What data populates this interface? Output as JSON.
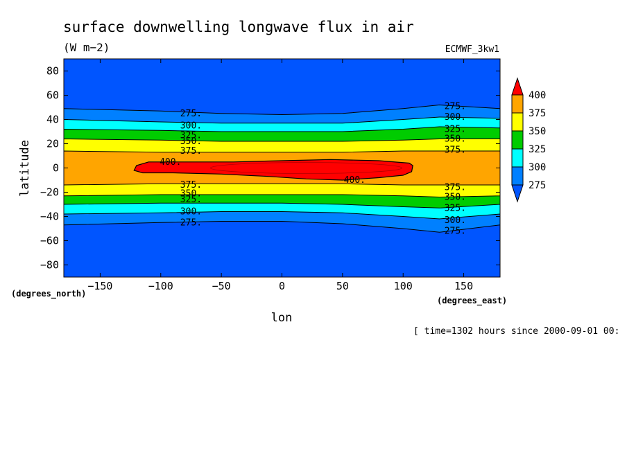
{
  "chart_data": {
    "type": "heatmap",
    "title": "surface downwelling longwave flux in air",
    "units": "(W m−2)",
    "dataset": "ECMWF_3kw1",
    "xlabel": "lon",
    "ylabel": "latitude",
    "x_unit_label": "(degrees_east)",
    "y_unit_label": "(degrees_north)",
    "time_label": "[ time=1302 hours since 2000-09-01 00:",
    "xlim": [
      -180,
      180
    ],
    "ylim": [
      -90,
      90
    ],
    "x_ticks": [
      -150,
      -100,
      -50,
      0,
      50,
      100,
      150
    ],
    "x_tick_labels": [
      "−150",
      "−100",
      "−50",
      "0",
      "50",
      "100",
      "150"
    ],
    "y_ticks": [
      80,
      60,
      40,
      20,
      0,
      -20,
      -40,
      -60,
      -80
    ],
    "y_tick_labels": [
      "80",
      "60",
      "40",
      "20",
      "0",
      "−20",
      "−40",
      "−60",
      "−80"
    ],
    "colorbar": {
      "levels": [
        400,
        375,
        350,
        325,
        300,
        275
      ],
      "labels": [
        "400",
        "375",
        "350",
        "325",
        "300",
        "275"
      ],
      "colors": [
        "#ff0000",
        "#ffa500",
        "#ffff00",
        "#00cc00",
        "#00ffff",
        "#0080ff"
      ],
      "under_color": "#0055ff"
    },
    "background_color": "#0055ff",
    "bands": [
      {
        "color": "#0080ff",
        "north": [
          [
            -180,
            49
          ],
          [
            -100,
            47
          ],
          [
            -50,
            45
          ],
          [
            0,
            44
          ],
          [
            50,
            45
          ],
          [
            100,
            49
          ],
          [
            130,
            52
          ],
          [
            180,
            49
          ]
        ],
        "south": [
          [
            -180,
            -47
          ],
          [
            -100,
            -45
          ],
          [
            -50,
            -44
          ],
          [
            0,
            -44
          ],
          [
            50,
            -46
          ],
          [
            100,
            -50
          ],
          [
            130,
            -53
          ],
          [
            180,
            -47
          ]
        ]
      },
      {
        "color": "#00ffff",
        "north": [
          [
            -180,
            40
          ],
          [
            -100,
            38
          ],
          [
            -50,
            37
          ],
          [
            0,
            37
          ],
          [
            50,
            37
          ],
          [
            100,
            40
          ],
          [
            130,
            42
          ],
          [
            180,
            41
          ]
        ],
        "south": [
          [
            -180,
            -38
          ],
          [
            -100,
            -37
          ],
          [
            -50,
            -36
          ],
          [
            0,
            -36
          ],
          [
            50,
            -37
          ],
          [
            100,
            -40
          ],
          [
            130,
            -42
          ],
          [
            180,
            -38
          ]
        ]
      },
      {
        "color": "#00cc00",
        "north": [
          [
            -180,
            32
          ],
          [
            -100,
            31
          ],
          [
            -50,
            30
          ],
          [
            0,
            30
          ],
          [
            50,
            30
          ],
          [
            100,
            32
          ],
          [
            130,
            34
          ],
          [
            180,
            33
          ]
        ],
        "south": [
          [
            -180,
            -30
          ],
          [
            -100,
            -29
          ],
          [
            -50,
            -29
          ],
          [
            0,
            -29
          ],
          [
            50,
            -30
          ],
          [
            100,
            -32
          ],
          [
            130,
            -33
          ],
          [
            180,
            -30
          ]
        ]
      },
      {
        "color": "#ffff00",
        "north": [
          [
            -180,
            24
          ],
          [
            -100,
            23
          ],
          [
            -50,
            22
          ],
          [
            0,
            22
          ],
          [
            50,
            22
          ],
          [
            100,
            23
          ],
          [
            130,
            24
          ],
          [
            180,
            24
          ]
        ],
        "south": [
          [
            -180,
            -23
          ],
          [
            -100,
            -22
          ],
          [
            -50,
            -22
          ],
          [
            0,
            -22
          ],
          [
            50,
            -22
          ],
          [
            100,
            -23
          ],
          [
            130,
            -24
          ],
          [
            180,
            -23
          ]
        ]
      },
      {
        "color": "#ffa500",
        "north": [
          [
            -180,
            14
          ],
          [
            -100,
            13
          ],
          [
            -50,
            13
          ],
          [
            0,
            13
          ],
          [
            50,
            13
          ],
          [
            100,
            14
          ],
          [
            130,
            14
          ],
          [
            180,
            14
          ]
        ],
        "south": [
          [
            -180,
            -14
          ],
          [
            -100,
            -13
          ],
          [
            -50,
            -13
          ],
          [
            0,
            -13
          ],
          [
            50,
            -13
          ],
          [
            100,
            -14
          ],
          [
            130,
            -14
          ],
          [
            180,
            -14
          ]
        ]
      }
    ],
    "max_region": {
      "value": 400,
      "color": "#ff0000",
      "outline": [
        [
          -120,
          2
        ],
        [
          -110,
          5
        ],
        [
          -80,
          5
        ],
        [
          -40,
          5
        ],
        [
          0,
          6
        ],
        [
          40,
          7
        ],
        [
          80,
          6
        ],
        [
          105,
          4
        ],
        [
          108,
          2
        ],
        [
          107,
          -3
        ],
        [
          100,
          -6
        ],
        [
          80,
          -8
        ],
        [
          50,
          -10
        ],
        [
          20,
          -9
        ],
        [
          -10,
          -7
        ],
        [
          -50,
          -5
        ],
        [
          -90,
          -4
        ],
        [
          -115,
          -4
        ],
        [
          -122,
          -2
        ]
      ]
    },
    "contour_labels": [
      {
        "text": "275.",
        "lon": -75,
        "lat": 45
      },
      {
        "text": "300.",
        "lon": -75,
        "lat": 35
      },
      {
        "text": "325.",
        "lon": -75,
        "lat": 27
      },
      {
        "text": "350.",
        "lon": -75,
        "lat": 22
      },
      {
        "text": "375.",
        "lon": -75,
        "lat": 14
      },
      {
        "text": "400.",
        "lon": -92,
        "lat": 5
      },
      {
        "text": "375.",
        "lon": -75,
        "lat": -14
      },
      {
        "text": "350.",
        "lon": -75,
        "lat": -21
      },
      {
        "text": "325.",
        "lon": -75,
        "lat": -26
      },
      {
        "text": "300.",
        "lon": -75,
        "lat": -36
      },
      {
        "text": "275.",
        "lon": -75,
        "lat": -45
      },
      {
        "text": "400.",
        "lon": 60,
        "lat": -10
      },
      {
        "text": "275.",
        "lon": 143,
        "lat": 51
      },
      {
        "text": "300.",
        "lon": 143,
        "lat": 42
      },
      {
        "text": "325.",
        "lon": 143,
        "lat": 32
      },
      {
        "text": "350.",
        "lon": 143,
        "lat": 24
      },
      {
        "text": "375.",
        "lon": 143,
        "lat": 15
      },
      {
        "text": "375.",
        "lon": 143,
        "lat": -16
      },
      {
        "text": "350.",
        "lon": 143,
        "lat": -24
      },
      {
        "text": "325.",
        "lon": 143,
        "lat": -33
      },
      {
        "text": "300.",
        "lon": 143,
        "lat": -43
      },
      {
        "text": "275.",
        "lon": 143,
        "lat": -52
      }
    ]
  }
}
